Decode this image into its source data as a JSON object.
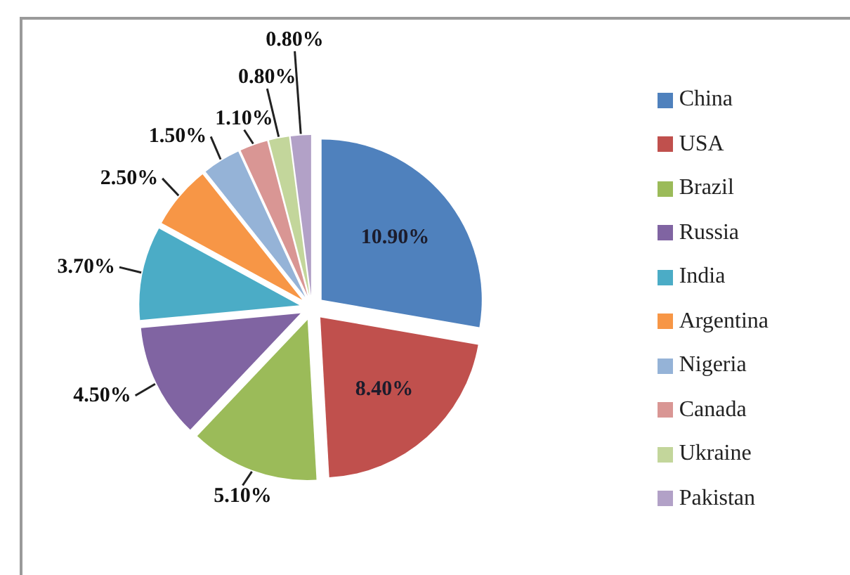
{
  "chart_data": {
    "type": "pie",
    "categories": [
      "China",
      "USA",
      "Brazil",
      "Russia",
      "India",
      "Argentina",
      "Nigeria",
      "Canada",
      "Ukraine",
      "Pakistan"
    ],
    "values": [
      10.9,
      8.4,
      5.1,
      4.5,
      3.7,
      2.5,
      1.5,
      1.1,
      0.8,
      0.8
    ],
    "colors": [
      "#4f81bd",
      "#c0504d",
      "#9bbb59",
      "#8064a2",
      "#4bacc6",
      "#f79646",
      "#95b3d7",
      "#d99694",
      "#c3d69b",
      "#b2a1c7"
    ],
    "value_labels": [
      "10.90%",
      "8.40%",
      "5.10%",
      "4.50%",
      "3.70%",
      "2.50%",
      "1.50%",
      "1.10%",
      "0.80%",
      "0.80%"
    ],
    "legend": "right"
  }
}
